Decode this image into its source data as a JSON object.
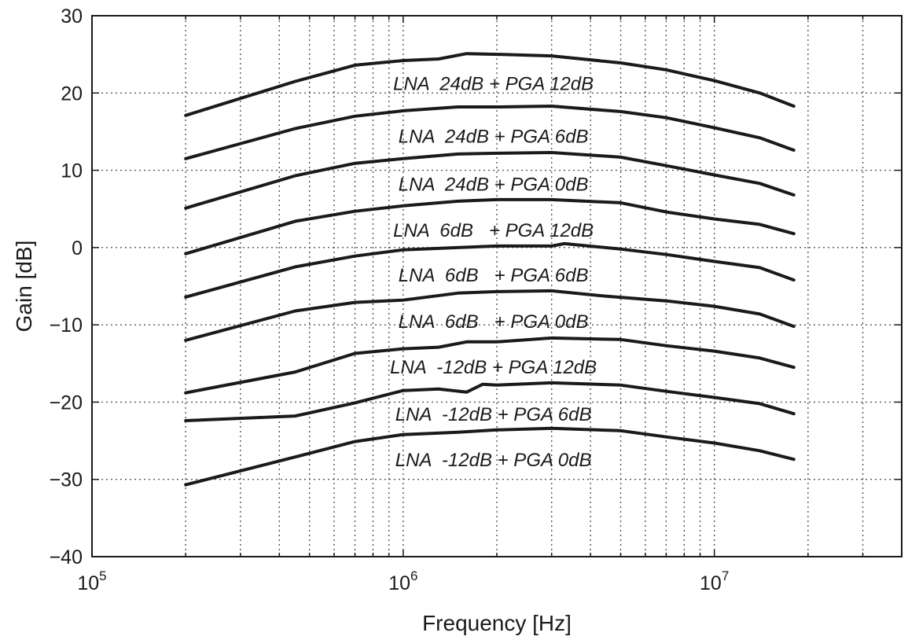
{
  "chart_data": {
    "type": "line",
    "xlabel": "Frequency [Hz]",
    "ylabel": "Gain [dB]",
    "xscale": "log",
    "xlim": [
      100000,
      40000000
    ],
    "ylim": [
      -40,
      30
    ],
    "grid": true,
    "x_ticks": [
      {
        "value": 100000,
        "base": "10",
        "exp": "5"
      },
      {
        "value": 1000000,
        "base": "10",
        "exp": "6"
      },
      {
        "value": 10000000,
        "base": "10",
        "exp": "7"
      }
    ],
    "y_ticks": [
      30,
      20,
      10,
      0,
      -10,
      -20,
      -30,
      -40
    ],
    "y_tick_labels": [
      "30",
      "20",
      "10",
      "0",
      "−10",
      "−20",
      "−30",
      "−40"
    ],
    "series": [
      {
        "name": "LNA  24dB + PGA 12dB",
        "x": [
          200000,
          450000,
          700000,
          1000000,
          1300000,
          1600000,
          2000000,
          3000000,
          5000000,
          7000000,
          10000000,
          14000000,
          18000000
        ],
        "y": [
          17.1,
          21.5,
          23.6,
          24.2,
          24.4,
          25.1,
          25.0,
          24.8,
          23.9,
          23.0,
          21.6,
          20.0,
          18.3
        ]
      },
      {
        "name": "LNA  24dB + PGA 6dB",
        "x": [
          200000,
          450000,
          700000,
          1000000,
          1500000,
          2000000,
          3000000,
          5000000,
          7000000,
          10000000,
          14000000,
          18000000
        ],
        "y": [
          11.5,
          15.4,
          17.0,
          17.7,
          18.2,
          18.2,
          18.3,
          17.6,
          16.8,
          15.5,
          14.2,
          12.6
        ]
      },
      {
        "name": "LNA  24dB + PGA 0dB",
        "x": [
          200000,
          450000,
          700000,
          1000000,
          1500000,
          2000000,
          3000000,
          5000000,
          7000000,
          10000000,
          14000000,
          18000000
        ],
        "y": [
          5.1,
          9.3,
          10.9,
          11.5,
          12.1,
          12.2,
          12.3,
          11.7,
          10.6,
          9.4,
          8.3,
          6.8
        ]
      },
      {
        "name": "LNA  6dB   + PGA 12dB",
        "x": [
          200000,
          450000,
          700000,
          1000000,
          1500000,
          2000000,
          3000000,
          5000000,
          7000000,
          10000000,
          14000000,
          18000000
        ],
        "y": [
          -0.8,
          3.4,
          4.7,
          5.4,
          6.0,
          6.2,
          6.2,
          5.8,
          4.6,
          3.7,
          3.0,
          1.8
        ]
      },
      {
        "name": "LNA  6dB   + PGA 6dB",
        "x": [
          200000,
          450000,
          700000,
          1000000,
          1500000,
          2000000,
          3000000,
          3300000,
          5000000,
          7000000,
          10000000,
          14000000,
          18000000
        ],
        "y": [
          -6.4,
          -2.5,
          -1.1,
          -0.3,
          0.0,
          0.2,
          0.2,
          0.5,
          -0.2,
          -0.9,
          -1.8,
          -2.6,
          -4.2
        ]
      },
      {
        "name": "LNA  6dB   + PGA 0dB",
        "x": [
          200000,
          450000,
          700000,
          1000000,
          1500000,
          2000000,
          3000000,
          4500000,
          7000000,
          10000000,
          14000000,
          18000000
        ],
        "y": [
          -12.0,
          -8.2,
          -7.1,
          -6.8,
          -5.9,
          -5.7,
          -5.6,
          -6.3,
          -6.9,
          -7.6,
          -8.6,
          -10.2
        ]
      },
      {
        "name": "LNA  -12dB + PGA 12dB",
        "x": [
          200000,
          450000,
          700000,
          1000000,
          1300000,
          1600000,
          2000000,
          3000000,
          5000000,
          7000000,
          10000000,
          14000000,
          18000000
        ],
        "y": [
          -18.8,
          -16.1,
          -13.7,
          -13.1,
          -12.9,
          -12.2,
          -12.2,
          -11.7,
          -11.9,
          -12.7,
          -13.4,
          -14.3,
          -15.5
        ]
      },
      {
        "name": "LNA  -12dB + PGA 6dB",
        "x": [
          200000,
          450000,
          700000,
          1000000,
          1300000,
          1600000,
          1800000,
          2000000,
          3000000,
          5000000,
          7000000,
          10000000,
          14000000,
          18000000
        ],
        "y": [
          -22.4,
          -21.8,
          -20.1,
          -18.5,
          -18.3,
          -18.7,
          -17.7,
          -17.8,
          -17.5,
          -17.8,
          -18.6,
          -19.4,
          -20.2,
          -21.5
        ]
      },
      {
        "name": "LNA  -12dB + PGA 0dB",
        "x": [
          200000,
          450000,
          700000,
          1000000,
          1500000,
          2000000,
          3000000,
          5000000,
          7000000,
          10000000,
          14000000,
          18000000
        ],
        "y": [
          -30.7,
          -27.1,
          -25.1,
          -24.2,
          -23.9,
          -23.6,
          -23.4,
          -23.7,
          -24.5,
          -25.3,
          -26.3,
          -27.4
        ]
      }
    ],
    "curve_labels": [
      {
        "text": "LNA  24dB + PGA 12dB",
        "x": 1950000,
        "y": 21.2
      },
      {
        "text": "LNA  24dB + PGA 6dB",
        "x": 1950000,
        "y": 14.4
      },
      {
        "text": "LNA  24dB + PGA 0dB",
        "x": 1950000,
        "y": 8.2
      },
      {
        "text": "LNA  6dB   + PGA 12dB",
        "x": 1950000,
        "y": 2.2
      },
      {
        "text": "LNA  6dB   + PGA 6dB",
        "x": 1950000,
        "y": -3.6
      },
      {
        "text": "LNA  6dB   + PGA 0dB",
        "x": 1950000,
        "y": -9.6
      },
      {
        "text": "LNA  -12dB + PGA 12dB",
        "x": 1950000,
        "y": -15.5
      },
      {
        "text": "LNA  -12dB + PGA 6dB",
        "x": 1950000,
        "y": -21.6
      },
      {
        "text": "LNA  -12dB + PGA 0dB",
        "x": 1950000,
        "y": -27.5
      }
    ]
  }
}
